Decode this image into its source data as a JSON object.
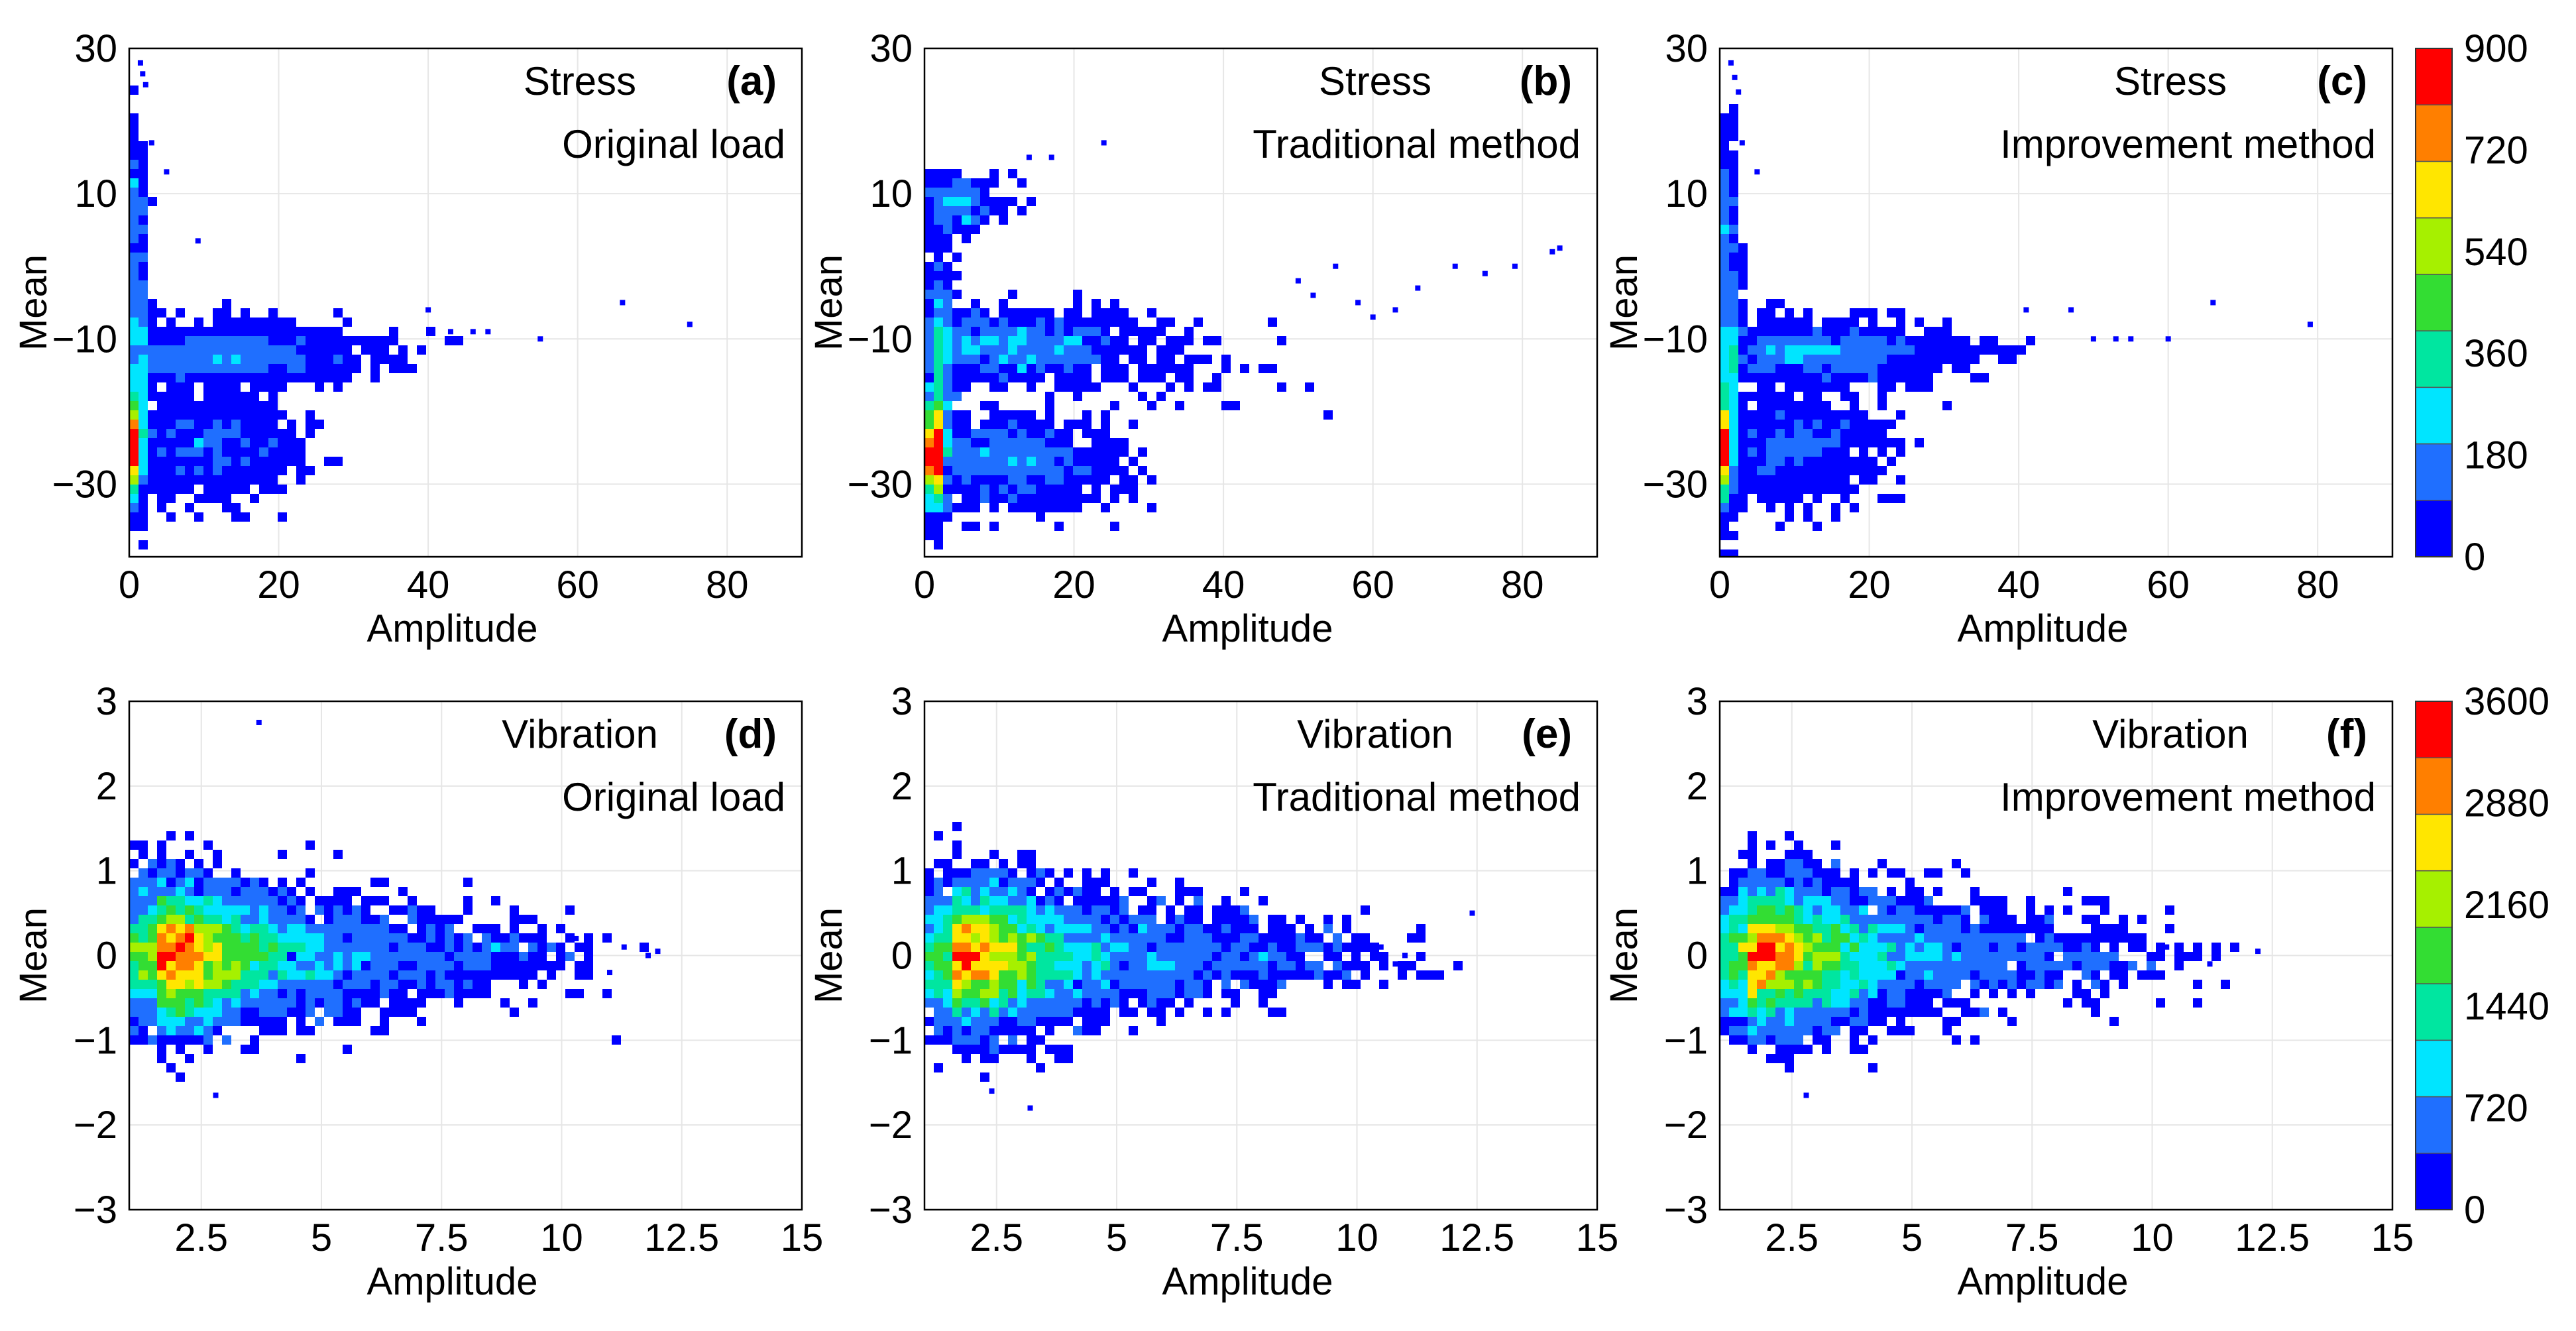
{
  "chart_data": [
    {
      "id": "a",
      "type": "scatter",
      "panel_label": "(a)",
      "title_line1": "Stress",
      "title_line2": "Original load",
      "xlabel": "Amplitude",
      "ylabel": "Mean",
      "xlim": [
        0,
        90
      ],
      "ylim": [
        -40,
        30
      ],
      "xticks": [
        0,
        20,
        40,
        60,
        80
      ],
      "xtick_labels": [
        "0",
        "20",
        "40",
        "60",
        "80"
      ],
      "yticks": [
        -30,
        -10,
        10,
        30
      ],
      "ytick_labels": [
        "−30",
        "−10",
        "10",
        "30"
      ],
      "colorbar": {
        "ticks": [
          0,
          180,
          360,
          540,
          720,
          900
        ]
      },
      "density": {
        "clusters": [
          {
            "x": 0.5,
            "y": -25,
            "sx": 0.5,
            "sy": 3.5,
            "n": 1400
          },
          {
            "x": 1.0,
            "y": -15,
            "sx": 0.8,
            "sy": 8.0,
            "n": 900
          },
          {
            "x": 12.0,
            "y": -12,
            "sx": 7.0,
            "sy": 2.0,
            "n": 1100
          },
          {
            "x": 10.0,
            "y": -25,
            "sx": 6.0,
            "sy": 3.5,
            "n": 900
          },
          {
            "x": 0.8,
            "y": 8,
            "sx": 0.6,
            "sy": 5.0,
            "n": 250
          },
          {
            "x": 25.0,
            "y": -12,
            "sx": 6.0,
            "sy": 1.6,
            "n": 180
          }
        ]
      },
      "outliers": [
        [
          1.5,
          28
        ],
        [
          1.8,
          26.5
        ],
        [
          2.2,
          25
        ],
        [
          3,
          17
        ],
        [
          5,
          13
        ],
        [
          9.2,
          3.5
        ],
        [
          40,
          -6
        ],
        [
          43,
          -9
        ],
        [
          46,
          -9
        ],
        [
          48,
          -9
        ],
        [
          55,
          -10
        ],
        [
          66,
          -5
        ],
        [
          75,
          -8
        ]
      ]
    },
    {
      "id": "b",
      "type": "scatter",
      "panel_label": "(b)",
      "title_line1": "Stress",
      "title_line2": "Traditional method",
      "xlabel": "Amplitude",
      "ylabel": "Mean",
      "xlim": [
        0,
        90
      ],
      "ylim": [
        -40,
        30
      ],
      "xticks": [
        0,
        20,
        40,
        60,
        80
      ],
      "xtick_labels": [
        "0",
        "20",
        "40",
        "60",
        "80"
      ],
      "yticks": [
        -30,
        -10,
        10,
        30
      ],
      "ytick_labels": [
        "−30",
        "−10",
        "10",
        "30"
      ],
      "colorbar": {
        "ticks": [
          0,
          180,
          360,
          540,
          720,
          900
        ]
      },
      "density": {
        "clusters": [
          {
            "x": 1.0,
            "y": -26,
            "sx": 0.8,
            "sy": 3.5,
            "n": 1500
          },
          {
            "x": 1.5,
            "y": -15,
            "sx": 1.2,
            "sy": 8.0,
            "n": 800
          },
          {
            "x": 12.0,
            "y": -11,
            "sx": 8.0,
            "sy": 2.2,
            "n": 1100
          },
          {
            "x": 11.0,
            "y": -27,
            "sx": 7.0,
            "sy": 3.0,
            "n": 1000
          },
          {
            "x": 4.0,
            "y": 8,
            "sx": 3.0,
            "sy": 2.0,
            "n": 300
          },
          {
            "x": 30.0,
            "y": -14,
            "sx": 8.0,
            "sy": 3.0,
            "n": 120
          }
        ]
      },
      "outliers": [
        [
          14,
          15
        ],
        [
          17,
          15
        ],
        [
          24,
          17
        ],
        [
          50,
          -2
        ],
        [
          52,
          -4
        ],
        [
          55,
          0
        ],
        [
          58,
          -5
        ],
        [
          60,
          -7
        ],
        [
          63,
          -6
        ],
        [
          66,
          -3
        ],
        [
          71,
          0
        ],
        [
          75,
          -1
        ],
        [
          79,
          0
        ],
        [
          84,
          2
        ],
        [
          85,
          2.5
        ]
      ]
    },
    {
      "id": "c",
      "type": "scatter",
      "panel_label": "(c)",
      "title_line1": "Stress",
      "title_line2": "Improvement method",
      "xlabel": "Amplitude",
      "ylabel": "Mean",
      "xlim": [
        0,
        90
      ],
      "ylim": [
        -40,
        30
      ],
      "xticks": [
        0,
        20,
        40,
        60,
        80
      ],
      "xtick_labels": [
        "0",
        "20",
        "40",
        "60",
        "80"
      ],
      "yticks": [
        -30,
        -10,
        10,
        30
      ],
      "ytick_labels": [
        "−30",
        "−10",
        "10",
        "30"
      ],
      "colorbar": {
        "ticks": [
          0,
          180,
          360,
          540,
          720,
          900
        ]
      },
      "density": {
        "clusters": [
          {
            "x": 0.5,
            "y": -25,
            "sx": 0.5,
            "sy": 3.5,
            "n": 1400
          },
          {
            "x": 1.0,
            "y": -15,
            "sx": 0.8,
            "sy": 8.0,
            "n": 900
          },
          {
            "x": 12.0,
            "y": -12,
            "sx": 7.0,
            "sy": 2.0,
            "n": 1100
          },
          {
            "x": 10.0,
            "y": -25,
            "sx": 6.0,
            "sy": 3.5,
            "n": 900
          },
          {
            "x": 0.8,
            "y": 8,
            "sx": 0.6,
            "sy": 5.0,
            "n": 250
          },
          {
            "x": 25.0,
            "y": -12,
            "sx": 6.0,
            "sy": 1.6,
            "n": 180
          }
        ]
      },
      "outliers": [
        [
          1.5,
          28
        ],
        [
          2,
          26
        ],
        [
          2.5,
          24
        ],
        [
          3,
          17
        ],
        [
          5,
          13
        ],
        [
          41,
          -6
        ],
        [
          47,
          -6
        ],
        [
          50,
          -10
        ],
        [
          53,
          -10
        ],
        [
          55,
          -10
        ],
        [
          60,
          -10
        ],
        [
          66,
          -5
        ],
        [
          79,
          -8
        ]
      ]
    },
    {
      "id": "d",
      "type": "scatter",
      "panel_label": "(d)",
      "title_line1": "Vibration",
      "title_line2": "Original load",
      "xlabel": "Amplitude",
      "ylabel": "Mean",
      "xlim": [
        1,
        15
      ],
      "ylim": [
        -3,
        3
      ],
      "xticks": [
        2.5,
        5,
        7.5,
        10,
        12.5,
        15
      ],
      "xtick_labels": [
        "2.5",
        "5",
        "7.5",
        "10",
        "12.5",
        "15"
      ],
      "yticks": [
        -3,
        -2,
        -1,
        0,
        1,
        2,
        3
      ],
      "ytick_labels": [
        "−3",
        "−2",
        "−1",
        "0",
        "1",
        "2",
        "3"
      ],
      "colorbar": {
        "ticks": [
          0,
          720,
          1440,
          2160,
          2880,
          3600
        ]
      },
      "density": {
        "clusters": [
          {
            "x": 1.6,
            "y": 0,
            "sx": 1.4,
            "sy": 0.4,
            "n": 5000
          },
          {
            "x": 4.5,
            "y": 0,
            "sx": 2.0,
            "sy": 0.33,
            "n": 1400
          },
          {
            "x": 8.5,
            "y": 0,
            "sx": 1.2,
            "sy": 0.18,
            "n": 150
          }
        ]
      },
      "outliers": [
        [
          3.7,
          2.75
        ],
        [
          10.3,
          0.2
        ],
        [
          11.0,
          -0.2
        ],
        [
          11.3,
          0.1
        ],
        [
          11.8,
          0.0
        ],
        [
          12.0,
          0.05
        ],
        [
          2.8,
          -1.65
        ]
      ]
    },
    {
      "id": "e",
      "type": "scatter",
      "panel_label": "(e)",
      "title_line1": "Vibration",
      "title_line2": "Traditional method",
      "xlabel": "Amplitude",
      "ylabel": "Mean",
      "xlim": [
        1,
        15
      ],
      "ylim": [
        -3,
        3
      ],
      "xticks": [
        2.5,
        5,
        7.5,
        10,
        12.5,
        15
      ],
      "xtick_labels": [
        "2.5",
        "5",
        "7.5",
        "10",
        "12.5",
        "15"
      ],
      "yticks": [
        -3,
        -2,
        -1,
        0,
        1,
        2,
        3
      ],
      "ytick_labels": [
        "−3",
        "−2",
        "−1",
        "0",
        "1",
        "2",
        "3"
      ],
      "colorbar": {
        "ticks": [
          0,
          720,
          1440,
          2160,
          2880,
          3600
        ]
      },
      "density": {
        "clusters": [
          {
            "x": 1.6,
            "y": 0,
            "sx": 1.4,
            "sy": 0.4,
            "n": 5000
          },
          {
            "x": 4.5,
            "y": 0,
            "sx": 2.0,
            "sy": 0.33,
            "n": 1400
          },
          {
            "x": 8.5,
            "y": 0,
            "sx": 1.2,
            "sy": 0.18,
            "n": 150
          }
        ]
      },
      "outliers": [
        [
          12.4,
          0.5
        ],
        [
          10.5,
          0.1
        ],
        [
          10.8,
          -0.1
        ],
        [
          11.0,
          0.0
        ],
        [
          2.4,
          -1.6
        ],
        [
          3.2,
          -1.8
        ]
      ]
    },
    {
      "id": "f",
      "type": "scatter",
      "panel_label": "(f)",
      "title_line1": "Vibration",
      "title_line2": "Improvement method",
      "xlabel": "Amplitude",
      "ylabel": "Mean",
      "xlim": [
        1,
        15
      ],
      "ylim": [
        -3,
        3
      ],
      "xticks": [
        2.5,
        5,
        7.5,
        10,
        12.5,
        15
      ],
      "xtick_labels": [
        "2.5",
        "5",
        "7.5",
        "10",
        "12.5",
        "15"
      ],
      "yticks": [
        -3,
        -2,
        -1,
        0,
        1,
        2,
        3
      ],
      "ytick_labels": [
        "−3",
        "−2",
        "−1",
        "0",
        "1",
        "2",
        "3"
      ],
      "colorbar": {
        "ticks": [
          0,
          720,
          1440,
          2160,
          2880,
          3600
        ]
      },
      "density": {
        "clusters": [
          {
            "x": 1.6,
            "y": 0,
            "sx": 1.4,
            "sy": 0.4,
            "n": 5000
          },
          {
            "x": 4.5,
            "y": 0,
            "sx": 2.0,
            "sy": 0.33,
            "n": 1400
          },
          {
            "x": 8.5,
            "y": 0,
            "sx": 1.2,
            "sy": 0.18,
            "n": 150
          }
        ]
      },
      "outliers": [
        [
          10.3,
          0.1
        ],
        [
          10.8,
          0.0
        ],
        [
          11.2,
          -0.1
        ],
        [
          12.2,
          0.05
        ],
        [
          2.8,
          -1.65
        ]
      ]
    }
  ],
  "colors": {
    "scale": [
      "#0000ff",
      "#1f6fff",
      "#00e5ff",
      "#00e6a0",
      "#33dd33",
      "#a6f000",
      "#ffe600",
      "#ff7f00",
      "#ff0000"
    ],
    "grid": "#e6e6e6",
    "axis": "#000000"
  }
}
